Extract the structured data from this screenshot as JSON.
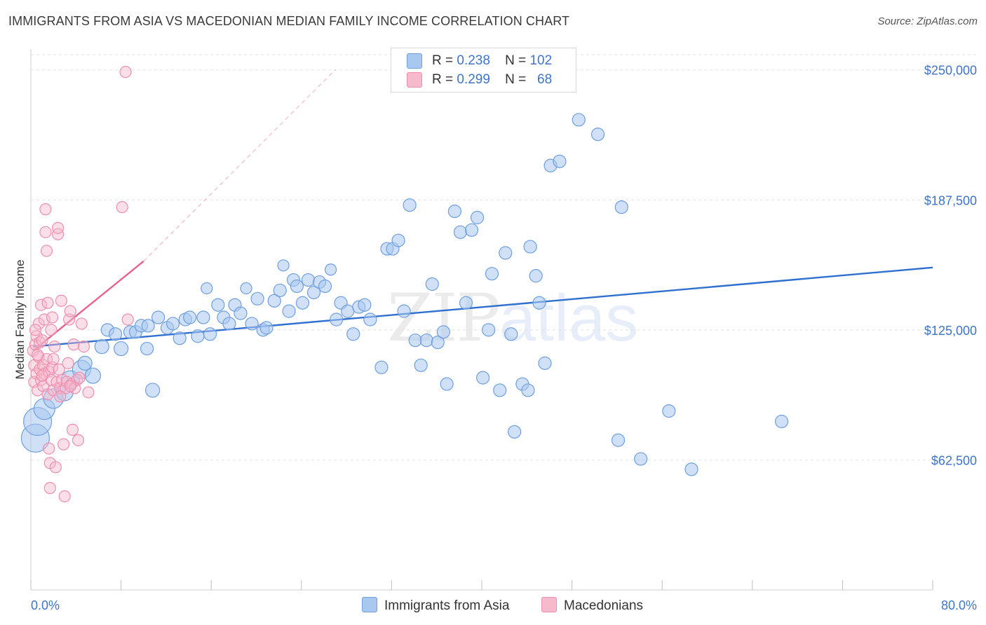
{
  "header": {
    "title": "IMMIGRANTS FROM ASIA VS MACEDONIAN MEDIAN FAMILY INCOME CORRELATION CHART",
    "source": "Source: ZipAtlas.com"
  },
  "watermark": {
    "bold": "ZIP",
    "light": "atlas"
  },
  "legend_top": {
    "rows": [
      {
        "r_label": "R =",
        "r_value": "0.238",
        "n_label": "N =",
        "n_value": "102"
      },
      {
        "r_label": "R =",
        "r_value": "0.299",
        "n_label": "N =",
        "n_value": "68"
      }
    ]
  },
  "legend_bottom": {
    "asia": "Immigrants from Asia",
    "macedonians": "Macedonians"
  },
  "colors": {
    "asia_fill": "#a9c8f0",
    "asia_stroke": "#6e9fe0",
    "asia_line": "#2f6fd0",
    "mac_fill": "#f7b9cc",
    "mac_stroke": "#ee8fae",
    "mac_line": "#e8628a",
    "grid": "#e2e2e2",
    "tick_text": "#3e74c9"
  },
  "chart_data": {
    "type": "scatter",
    "title": "IMMIGRANTS FROM ASIA VS MACEDONIAN MEDIAN FAMILY INCOME CORRELATION CHART",
    "xlabel": "",
    "ylabel": "Median Family Income",
    "xlim": [
      0,
      80
    ],
    "ylim": [
      0,
      260000
    ],
    "x_tick_labels": [
      "0.0%",
      "80.0%"
    ],
    "y_ticks": [
      62500,
      125000,
      187500,
      250000
    ],
    "y_tick_labels": [
      "$62,500",
      "$125,000",
      "$187,500",
      "$250,000"
    ],
    "series": [
      {
        "name": "Immigrants from Asia",
        "r": 0.238,
        "n": 102,
        "trend": {
          "x": [
            0.2,
            80
          ],
          "y": [
            117000,
            155000
          ]
        },
        "points": [
          [
            0.4,
            73000,
            18
          ],
          [
            0.6,
            81000,
            18
          ],
          [
            1.2,
            87000,
            13
          ],
          [
            2.0,
            92000,
            12
          ],
          [
            3.0,
            95000,
            10
          ],
          [
            3.5,
            101000,
            11
          ],
          [
            4.5,
            106000,
            11
          ],
          [
            5.5,
            103000,
            9
          ],
          [
            4.8,
            109000,
            8
          ],
          [
            6.3,
            117000,
            8
          ],
          [
            6.8,
            125000,
            7
          ],
          [
            8.0,
            116000,
            8
          ],
          [
            7.5,
            123000,
            7
          ],
          [
            8.8,
            124000,
            7
          ],
          [
            9.3,
            124000,
            7
          ],
          [
            9.8,
            127000,
            7
          ],
          [
            10.3,
            116000,
            7
          ],
          [
            10.4,
            127000,
            7
          ],
          [
            10.8,
            96000,
            8
          ],
          [
            11.3,
            131000,
            7
          ],
          [
            12.1,
            126000,
            7
          ],
          [
            12.6,
            128000,
            7
          ],
          [
            13.2,
            121000,
            7
          ],
          [
            13.7,
            130000,
            7
          ],
          [
            14.1,
            131000,
            7
          ],
          [
            14.8,
            122000,
            7
          ],
          [
            15.3,
            131000,
            7
          ],
          [
            15.6,
            145000,
            6
          ],
          [
            15.9,
            123000,
            7
          ],
          [
            16.6,
            137000,
            7
          ],
          [
            17.1,
            131000,
            7
          ],
          [
            17.6,
            128000,
            7
          ],
          [
            18.1,
            137000,
            7
          ],
          [
            18.6,
            133000,
            7
          ],
          [
            19.1,
            145000,
            6
          ],
          [
            19.6,
            128000,
            7
          ],
          [
            20.1,
            140000,
            7
          ],
          [
            20.6,
            125000,
            7
          ],
          [
            20.9,
            126000,
            7
          ],
          [
            21.6,
            139000,
            7
          ],
          [
            22.1,
            144000,
            7
          ],
          [
            22.4,
            156000,
            6
          ],
          [
            22.9,
            134000,
            7
          ],
          [
            23.3,
            149000,
            7
          ],
          [
            23.6,
            146000,
            7
          ],
          [
            24.1,
            138000,
            7
          ],
          [
            24.6,
            149000,
            7
          ],
          [
            25.1,
            143000,
            7
          ],
          [
            25.6,
            148000,
            7
          ],
          [
            26.1,
            146000,
            7
          ],
          [
            26.6,
            154000,
            6
          ],
          [
            27.1,
            130000,
            7
          ],
          [
            27.5,
            138000,
            7
          ],
          [
            28.1,
            134000,
            7
          ],
          [
            28.6,
            123000,
            7
          ],
          [
            29.1,
            136000,
            7
          ],
          [
            29.6,
            137000,
            7
          ],
          [
            30.1,
            130000,
            7
          ],
          [
            31.1,
            107000,
            7
          ],
          [
            31.6,
            164000,
            7
          ],
          [
            32.1,
            164000,
            7
          ],
          [
            32.6,
            168000,
            7
          ],
          [
            33.1,
            134000,
            7
          ],
          [
            33.6,
            185000,
            7
          ],
          [
            34.1,
            120000,
            7
          ],
          [
            34.6,
            108000,
            7
          ],
          [
            35.1,
            120000,
            7
          ],
          [
            35.6,
            147000,
            7
          ],
          [
            36.1,
            119000,
            7
          ],
          [
            36.6,
            124000,
            7
          ],
          [
            36.9,
            99000,
            7
          ],
          [
            37.6,
            182000,
            7
          ],
          [
            38.1,
            172000,
            7
          ],
          [
            38.6,
            138000,
            7
          ],
          [
            39.1,
            173000,
            7
          ],
          [
            39.6,
            179000,
            7
          ],
          [
            40.1,
            102000,
            7
          ],
          [
            40.6,
            125000,
            7
          ],
          [
            40.9,
            152000,
            7
          ],
          [
            41.6,
            96000,
            7
          ],
          [
            42.1,
            162000,
            7
          ],
          [
            42.6,
            123000,
            7
          ],
          [
            42.9,
            76000,
            7
          ],
          [
            43.6,
            99000,
            7
          ],
          [
            44.1,
            96000,
            7
          ],
          [
            44.3,
            165000,
            7
          ],
          [
            44.8,
            151000,
            7
          ],
          [
            45.1,
            138000,
            7
          ],
          [
            45.6,
            109000,
            7
          ],
          [
            46.1,
            204000,
            7
          ],
          [
            46.9,
            206000,
            7
          ],
          [
            48.6,
            226000,
            7
          ],
          [
            50.3,
            219000,
            7
          ],
          [
            52.1,
            72000,
            7
          ],
          [
            52.4,
            184000,
            7
          ],
          [
            54.1,
            63000,
            7
          ],
          [
            56.6,
            86000,
            7
          ],
          [
            58.6,
            58000,
            7
          ],
          [
            66.6,
            81000,
            7
          ]
        ]
      },
      {
        "name": "Macedonians",
        "r": 0.299,
        "n": 68,
        "trend": {
          "x": [
            0.2,
            10
          ],
          "y": [
            115000,
            158000
          ]
        },
        "trend_dashed": {
          "x": [
            10,
            27
          ],
          "y": [
            158000,
            250000
          ]
        },
        "points": [
          [
            0.2,
            115000
          ],
          [
            0.3,
            100000
          ],
          [
            0.3,
            108000
          ],
          [
            0.4,
            118000
          ],
          [
            0.5,
            122000
          ],
          [
            0.5,
            104000
          ],
          [
            0.6,
            96000
          ],
          [
            0.7,
            128000
          ],
          [
            0.7,
            112000
          ],
          [
            0.8,
            119000
          ],
          [
            0.8,
            106000
          ],
          [
            0.9,
            101000
          ],
          [
            0.9,
            137000
          ],
          [
            1.0,
            120000
          ],
          [
            1.1,
            98000
          ],
          [
            1.1,
            108000
          ],
          [
            1.2,
            130000
          ],
          [
            1.2,
            104000
          ],
          [
            1.3,
            183000
          ],
          [
            1.3,
            172000
          ],
          [
            1.4,
            163000
          ],
          [
            1.4,
            111000
          ],
          [
            1.5,
            138000
          ],
          [
            1.5,
            94000
          ],
          [
            1.6,
            68000
          ],
          [
            1.6,
            105000
          ],
          [
            1.7,
            49000
          ],
          [
            1.7,
            61000
          ],
          [
            1.8,
            101000
          ],
          [
            1.9,
            131000
          ],
          [
            1.9,
            107000
          ],
          [
            2.0,
            96000
          ],
          [
            2.0,
            111000
          ],
          [
            2.1,
            117000
          ],
          [
            2.2,
            59000
          ],
          [
            2.3,
            100000
          ],
          [
            2.4,
            171000
          ],
          [
            2.4,
            174000
          ],
          [
            2.5,
            106000
          ],
          [
            2.6,
            97000
          ],
          [
            2.7,
            139000
          ],
          [
            2.8,
            101000
          ],
          [
            2.9,
            70000
          ],
          [
            3.0,
            45000
          ],
          [
            3.1,
            97000
          ],
          [
            3.2,
            100000
          ],
          [
            3.3,
            109000
          ],
          [
            3.4,
            130000
          ],
          [
            3.5,
            134000
          ],
          [
            3.6,
            99000
          ],
          [
            3.7,
            77000
          ],
          [
            3.8,
            118000
          ],
          [
            3.9,
            97000
          ],
          [
            4.1,
            101000
          ],
          [
            4.2,
            72000
          ],
          [
            4.3,
            102000
          ],
          [
            4.5,
            128000
          ],
          [
            4.7,
            117000
          ],
          [
            5.1,
            95000
          ],
          [
            8.1,
            184000
          ],
          [
            8.4,
            249000
          ],
          [
            8.6,
            130000
          ],
          [
            0.4,
            125000
          ],
          [
            0.6,
            113000
          ],
          [
            1.0,
            103000
          ],
          [
            1.8,
            125000
          ],
          [
            2.6,
            93000
          ],
          [
            3.5,
            98000
          ]
        ]
      }
    ]
  }
}
